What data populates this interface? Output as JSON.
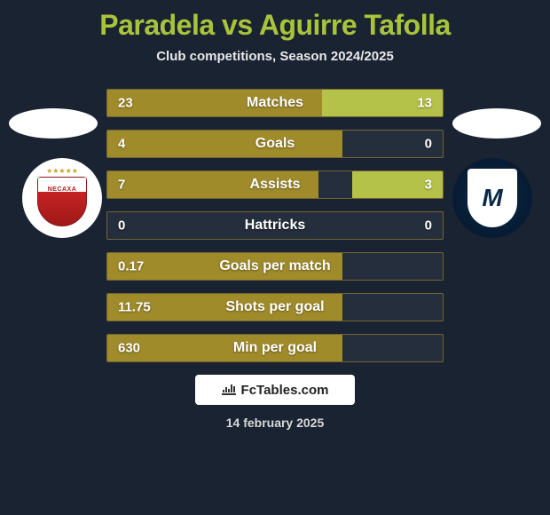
{
  "header": {
    "title": "Paradela vs Aguirre Tafolla",
    "subtitle": "Club competitions, Season 2024/2025",
    "title_color": "#a8c43a",
    "subtitle_color": "#e8e8e8"
  },
  "background_color": "#1a2332",
  "players": {
    "left": {
      "club_name": "NECAXA"
    },
    "right": {
      "club_initial": "M"
    }
  },
  "stats": {
    "bar_left_color": "#a08b2b",
    "bar_right_color": "#b4c24a",
    "border_color": "rgba(168,139,43,0.6)",
    "rows": [
      {
        "label": "Matches",
        "left": "23",
        "right": "13",
        "left_pct": 64,
        "right_pct": 36
      },
      {
        "label": "Goals",
        "left": "4",
        "right": "0",
        "left_pct": 70,
        "right_pct": 0
      },
      {
        "label": "Assists",
        "left": "7",
        "right": "3",
        "left_pct": 63,
        "right_pct": 27
      },
      {
        "label": "Hattricks",
        "left": "0",
        "right": "0",
        "left_pct": 0,
        "right_pct": 0
      },
      {
        "label": "Goals per match",
        "left": "0.17",
        "right": "",
        "left_pct": 70,
        "right_pct": 0
      },
      {
        "label": "Shots per goal",
        "left": "11.75",
        "right": "",
        "left_pct": 70,
        "right_pct": 0
      },
      {
        "label": "Min per goal",
        "left": "630",
        "right": "",
        "left_pct": 70,
        "right_pct": 0
      }
    ]
  },
  "footer": {
    "brand": "FcTables.com",
    "date": "14 february 2025"
  }
}
